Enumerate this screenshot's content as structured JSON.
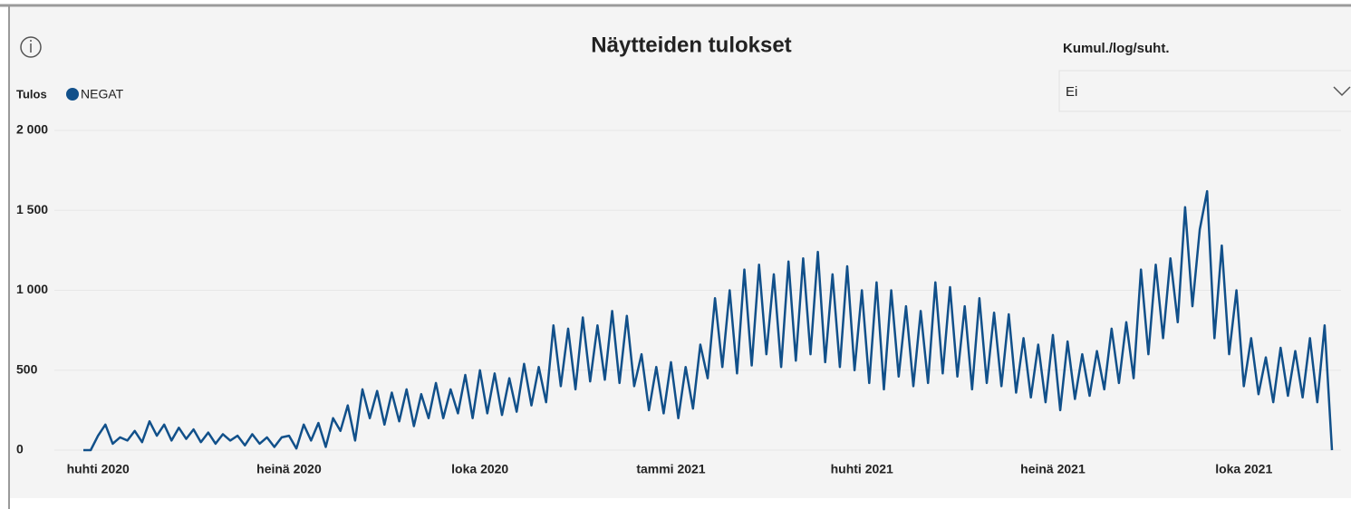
{
  "header": {
    "title": "Näytteiden tulokset"
  },
  "slicer": {
    "label": "Kumul./log/suht.",
    "value": "Ei"
  },
  "legend": {
    "title": "Tulos"
  },
  "chart_data": {
    "type": "line",
    "categories": [
      null,
      null,
      "huhti 2020",
      null,
      null,
      null,
      null,
      null,
      null,
      null,
      null,
      null,
      null,
      null,
      null,
      null,
      null,
      null,
      null,
      null,
      null,
      null,
      null,
      null,
      null,
      null,
      null,
      null,
      "heinä 2020",
      null,
      null,
      null,
      null,
      null,
      null,
      null,
      null,
      null,
      null,
      null,
      null,
      null,
      null,
      null,
      null,
      null,
      null,
      null,
      null,
      null,
      null,
      null,
      null,
      null,
      "loka 2020",
      null,
      null,
      null,
      null,
      null,
      null,
      null,
      null,
      null,
      null,
      null,
      null,
      null,
      null,
      null,
      null,
      null,
      null,
      null,
      null,
      null,
      null,
      null,
      null,
      null,
      "tammi 2021",
      null,
      null,
      null,
      null,
      null,
      null,
      null,
      null,
      null,
      null,
      null,
      null,
      null,
      null,
      null,
      null,
      null,
      null,
      null,
      null,
      null,
      null,
      null,
      null,
      null,
      "huhti 2021",
      null,
      null,
      null,
      null,
      null,
      null,
      null,
      null,
      null,
      null,
      null,
      null,
      null,
      null,
      null,
      null,
      null,
      null,
      null,
      null,
      null,
      null,
      null,
      null,
      null,
      "heinä 2021",
      null,
      null,
      null,
      null,
      null,
      null,
      null,
      null,
      null,
      null,
      null,
      null,
      null,
      null,
      null,
      null,
      null,
      null,
      null,
      null,
      null,
      null,
      null,
      null,
      null,
      "loka 2021",
      null,
      null,
      null,
      null,
      null,
      null,
      null,
      null,
      null,
      null,
      null,
      null
    ],
    "series": [
      {
        "name": "NEGAT",
        "color": "#11508a",
        "values": [
          0,
          0,
          90,
          160,
          40,
          80,
          60,
          120,
          50,
          180,
          90,
          160,
          60,
          140,
          70,
          130,
          50,
          110,
          40,
          100,
          60,
          90,
          30,
          100,
          40,
          80,
          20,
          80,
          90,
          10,
          160,
          60,
          170,
          20,
          200,
          120,
          280,
          60,
          380,
          200,
          370,
          160,
          360,
          180,
          380,
          150,
          350,
          200,
          420,
          200,
          380,
          230,
          470,
          200,
          500,
          230,
          480,
          220,
          450,
          240,
          540,
          280,
          520,
          300,
          780,
          400,
          760,
          380,
          830,
          430,
          780,
          440,
          870,
          420,
          840,
          400,
          600,
          250,
          520,
          230,
          550,
          200,
          520,
          260,
          660,
          450,
          950,
          520,
          1000,
          480,
          1130,
          530,
          1160,
          600,
          1100,
          520,
          1180,
          560,
          1200,
          600,
          1240,
          550,
          1100,
          520,
          1150,
          500,
          1000,
          420,
          1050,
          380,
          1000,
          460,
          900,
          400,
          870,
          420,
          1050,
          480,
          1020,
          460,
          900,
          380,
          950,
          420,
          860,
          400,
          850,
          360,
          700,
          330,
          660,
          300,
          720,
          250,
          680,
          320,
          600,
          340,
          620,
          380,
          760,
          420,
          800,
          450,
          1130,
          600,
          1160,
          700,
          1200,
          800,
          1520,
          900,
          1380,
          1620,
          700,
          1280,
          600,
          1000,
          400,
          700,
          350,
          580,
          300,
          640,
          340,
          620,
          330,
          700,
          300,
          780,
          0
        ]
      }
    ],
    "ylim": [
      0,
      2000
    ],
    "yticks": [
      0,
      500,
      {
        "value": 1000,
        "label": "1 000"
      },
      {
        "value": 1500,
        "label": "1 500"
      },
      {
        "value": 2000,
        "label": "2 000"
      }
    ],
    "grid": true
  }
}
